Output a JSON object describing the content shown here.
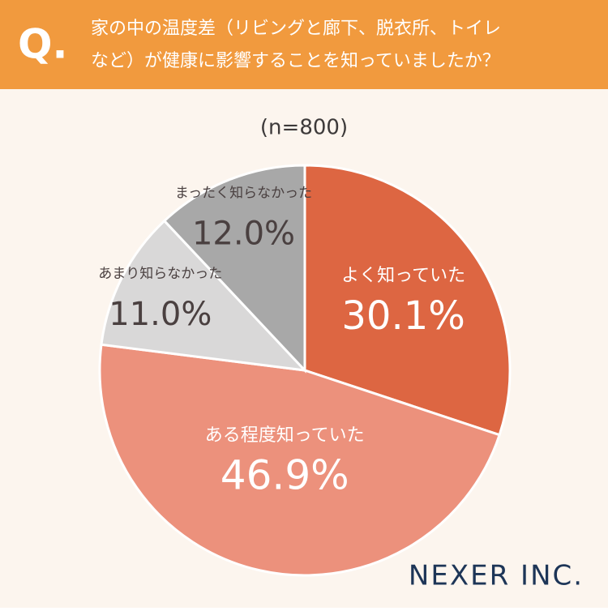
{
  "header": {
    "q_mark": "Q.",
    "title_lines": [
      "家の中の温度差（リビングと廊下、脱衣所、トイレ",
      "など）が健康に影響することを知っていましたか？"
    ]
  },
  "chart_data": {
    "type": "pie",
    "subtitle": "(n=800)",
    "categories": [
      "よく知っていた",
      "ある程度知っていた",
      "あまり知らなかった",
      "まったく知らなかった"
    ],
    "values": [
      30.1,
      46.9,
      11.0,
      12.0
    ],
    "value_labels": [
      "30.1%",
      "46.9%",
      "11.0%",
      "12.0%"
    ],
    "colors": [
      "#dd6642",
      "#ec917c",
      "#d9d8d8",
      "#a8a8a8"
    ]
  },
  "footer": {
    "logo": "NEXER INC."
  }
}
